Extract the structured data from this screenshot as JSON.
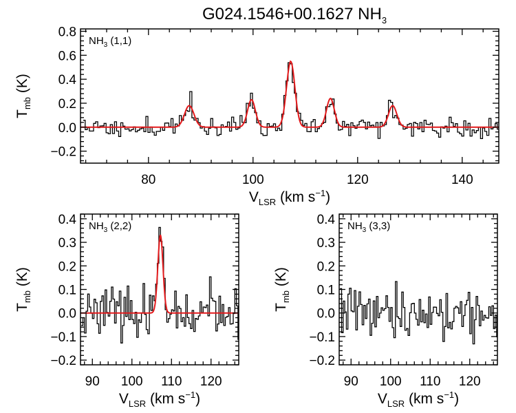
{
  "title": {
    "main": "G024.1546+00.1627 NH",
    "sub": "3"
  },
  "colors": {
    "observed": "#000000",
    "fit": "#e31a1c",
    "axis": "#000000"
  },
  "chart_data": [
    {
      "type": "line",
      "label": {
        "main": "NH",
        "sub": "3",
        "rest": " (1,1)"
      },
      "xlabel": {
        "main": "V",
        "sub": "LSR",
        "rest": " (km s",
        "sup": "−1",
        "end": ")"
      },
      "ylabel": {
        "main": "T",
        "sub": "mb",
        "rest": " (K)"
      },
      "xlim": [
        67,
        147
      ],
      "ylim": [
        -0.3,
        0.82
      ],
      "xticks": [
        80,
        100,
        120,
        140
      ],
      "xtick_labels": [
        "80",
        "100",
        "120",
        "140"
      ],
      "yticks": [
        -0.2,
        0.0,
        0.2,
        0.4,
        0.6,
        0.8
      ],
      "ytick_labels": [
        "−0.2",
        "0.0",
        "0.2",
        "0.4",
        "0.6",
        "0.8"
      ],
      "series": [
        {
          "name": "observed spectrum",
          "style": "histogram",
          "x_start": 67.5,
          "x_step": 0.4,
          "noise": 0.045,
          "seed": 11
        },
        {
          "name": "hyperfine fit",
          "style": "line",
          "components": [
            {
              "v": 87.8,
              "amp": 0.18,
              "sigma": 0.9
            },
            {
              "v": 99.7,
              "amp": 0.23,
              "sigma": 0.75
            },
            {
              "v": 107.2,
              "amp": 0.55,
              "sigma": 0.8
            },
            {
              "v": 114.8,
              "amp": 0.24,
              "sigma": 0.75
            },
            {
              "v": 126.7,
              "amp": 0.18,
              "sigma": 0.8
            }
          ]
        }
      ]
    },
    {
      "type": "line",
      "label": {
        "main": "NH",
        "sub": "3",
        "rest": " (2,2)"
      },
      "xlabel": {
        "main": "V",
        "sub": "LSR",
        "rest": " (km s",
        "sup": "−1",
        "end": ")"
      },
      "ylabel": {
        "main": "T",
        "sub": "mb",
        "rest": " (K)"
      },
      "xlim": [
        87,
        127
      ],
      "ylim": [
        -0.22,
        0.42
      ],
      "xticks": [
        90,
        100,
        110,
        120
      ],
      "xtick_labels": [
        "90",
        "100",
        "110",
        "120"
      ],
      "yticks": [
        -0.2,
        -0.1,
        0.0,
        0.1,
        0.2,
        0.3,
        0.4
      ],
      "ytick_labels": [
        "−0.2",
        "−0.1",
        "0.0",
        "0.1",
        "0.2",
        "0.3",
        "0.4"
      ],
      "series": [
        {
          "name": "observed spectrum",
          "style": "histogram",
          "x_start": 87.2,
          "x_step": 0.4,
          "noise": 0.05,
          "seed": 23
        },
        {
          "name": "gaussian fit",
          "style": "line",
          "components": [
            {
              "v": 107.2,
              "amp": 0.33,
              "sigma": 0.65
            }
          ]
        }
      ]
    },
    {
      "type": "line",
      "label": {
        "main": "NH",
        "sub": "3",
        "rest": " (3,3)"
      },
      "xlabel": {
        "main": "V",
        "sub": "LSR",
        "rest": " (km s",
        "sup": "−1",
        "end": ")"
      },
      "ylabel": {
        "main": "T",
        "sub": "mb",
        "rest": " (K)"
      },
      "xlim": [
        87,
        127
      ],
      "ylim": [
        -0.22,
        0.42
      ],
      "xticks": [
        90,
        100,
        110,
        120
      ],
      "xtick_labels": [
        "90",
        "100",
        "110",
        "120"
      ],
      "yticks": [
        -0.2,
        -0.1,
        0.0,
        0.1,
        0.2,
        0.3,
        0.4
      ],
      "ytick_labels": [
        "−0.2",
        "−0.1",
        "0.0",
        "0.1",
        "0.2",
        "0.3",
        "0.4"
      ],
      "series": [
        {
          "name": "observed spectrum",
          "style": "histogram",
          "x_start": 87.2,
          "x_step": 0.4,
          "noise": 0.055,
          "seed": 37
        }
      ]
    }
  ]
}
